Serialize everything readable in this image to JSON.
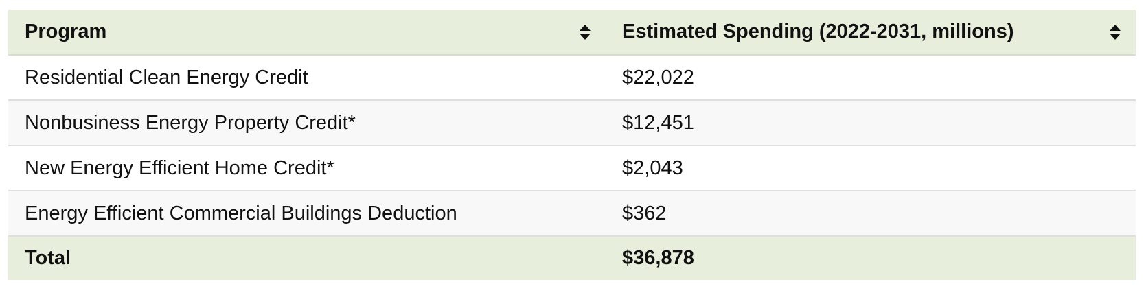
{
  "table": {
    "columns": [
      {
        "label": "Program",
        "sort_icon": "sort-up-down-icon"
      },
      {
        "label": "Estimated Spending (2022-2031, millions)",
        "sort_icon": "sort-up-down-icon"
      }
    ],
    "rows": [
      {
        "program": "Residential Clean Energy Credit",
        "spending": "$22,022"
      },
      {
        "program": "Nonbusiness Energy Property Credit*",
        "spending": "$12,451"
      },
      {
        "program": "New Energy Efficient Home Credit*",
        "spending": "$2,043"
      },
      {
        "program": "Energy Efficient Commercial Buildings Deduction",
        "spending": "$362"
      }
    ],
    "total": {
      "label": "Total",
      "spending": "$36,878"
    }
  },
  "colors": {
    "header_bg": "#e7eedb",
    "row_alt_bg": "#f8f8f8",
    "border": "#dedede"
  }
}
